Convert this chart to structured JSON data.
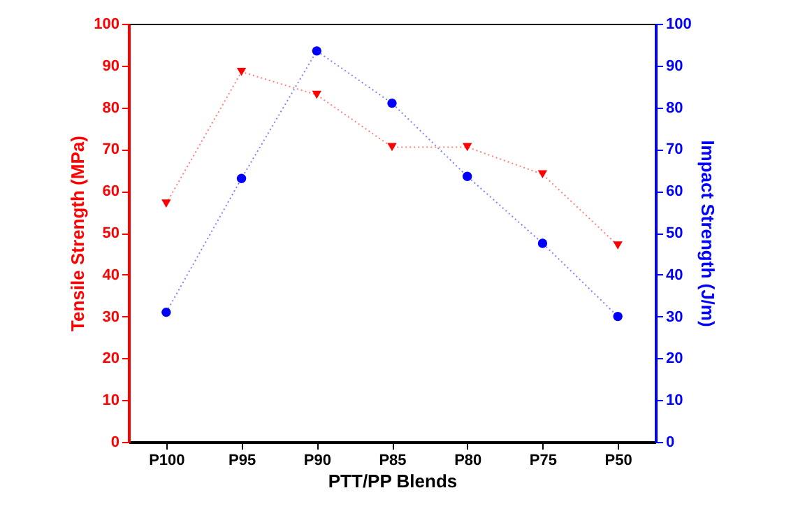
{
  "chart_data": {
    "type": "line",
    "xlabel": "PTT/PP Blends",
    "ylabel": "Tensile Strength (MPa)",
    "y2label": "Impact Strength (J/m)",
    "categories": [
      "P100",
      "P95",
      "P90",
      "P85",
      "P80",
      "P75",
      "P50"
    ],
    "series": [
      {
        "color": "#ff0000",
        "marker": "triangle",
        "values": [
          57,
          88.5,
          83,
          70.5,
          70.5,
          64,
          47
        ]
      },
      {
        "color": "#0000ff",
        "marker": "circle",
        "axis": "y2",
        "values": [
          31,
          63,
          93.5,
          81,
          63.5,
          47.5,
          30
        ]
      }
    ],
    "ylim": [
      0,
      100
    ],
    "yticks": [
      0,
      10,
      20,
      30,
      40,
      50,
      60,
      70,
      80,
      90,
      100
    ],
    "y2lim": [
      0,
      100
    ],
    "y2ticks": [
      0,
      10,
      20,
      30,
      40,
      50,
      60,
      70,
      80,
      90,
      100
    ],
    "line_style": "dotted",
    "grid": false
  }
}
